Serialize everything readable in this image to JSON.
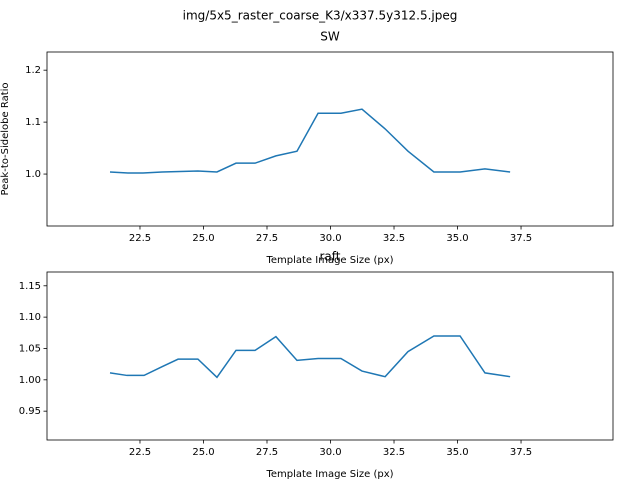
{
  "suptitle": "img/5x5_raster_coarse_K3/x337.5y312.5.jpeg",
  "chart_data": [
    {
      "type": "line",
      "title": "SW",
      "x_label": "Template Image Size (px)",
      "y_label": "Peak-to-Sidelobe Ratio",
      "xlim": [
        18.84,
        41.12
      ],
      "ylim": [
        0.9,
        1.235
      ],
      "xticks": [
        22.5,
        {
          "value": 25,
          "label": "25.0"
        },
        27.5,
        {
          "value": 30,
          "label": "30.0"
        },
        32.5,
        {
          "value": 35,
          "label": "35.0"
        },
        37.5
      ],
      "yticks": [
        {
          "value": 1,
          "label": "1.0"
        },
        1.1,
        {
          "value": 1.2,
          "label": "1.2"
        }
      ],
      "series": [
        {
          "color": "#1f77b4",
          "x": [
            21.32,
            22.03,
            22.62,
            23.37,
            24.78,
            25.53,
            26.28,
            27.03,
            27.85,
            28.68,
            29.51,
            30.41,
            31.24,
            32.15,
            33.05,
            34.07,
            35.1,
            36.08,
            37.07
          ],
          "values": [
            1.004,
            1.002,
            1.002,
            1.004,
            1.006,
            1.004,
            1.021,
            1.021,
            1.035,
            1.044,
            1.117,
            1.117,
            1.125,
            1.087,
            1.044,
            1.004,
            1.004,
            1.01,
            1.004
          ]
        }
      ]
    },
    {
      "type": "line",
      "title": "raft",
      "x_label": "Template Image Size (px)",
      "xlim": [
        18.84,
        41.12
      ],
      "ylim": [
        0.904,
        1.172
      ],
      "xticks": [
        22.5,
        {
          "value": 25,
          "label": "25.0"
        },
        27.5,
        {
          "value": 30,
          "label": "30.0"
        },
        32.5,
        {
          "value": 35,
          "label": "35.0"
        },
        37.5
      ],
      "yticks": [
        0.95,
        {
          "value": 1,
          "label": "1.00"
        },
        1.05,
        {
          "value": 1.1,
          "label": "1.10"
        },
        1.15
      ],
      "series": [
        {
          "color": "#1f77b4",
          "x": [
            21.32,
            21.99,
            22.66,
            23.37,
            24.0,
            24.78,
            25.53,
            26.28,
            27.03,
            27.85,
            28.68,
            29.51,
            30.41,
            31.24,
            32.15,
            33.05,
            34.07,
            35.1,
            36.08,
            37.07
          ],
          "values": [
            1.011,
            1.007,
            1.007,
            1.021,
            1.033,
            1.033,
            1.004,
            1.047,
            1.047,
            1.069,
            1.031,
            1.034,
            1.034,
            1.014,
            1.005,
            1.045,
            1.07,
            1.07,
            1.011,
            1.005
          ]
        }
      ]
    }
  ]
}
